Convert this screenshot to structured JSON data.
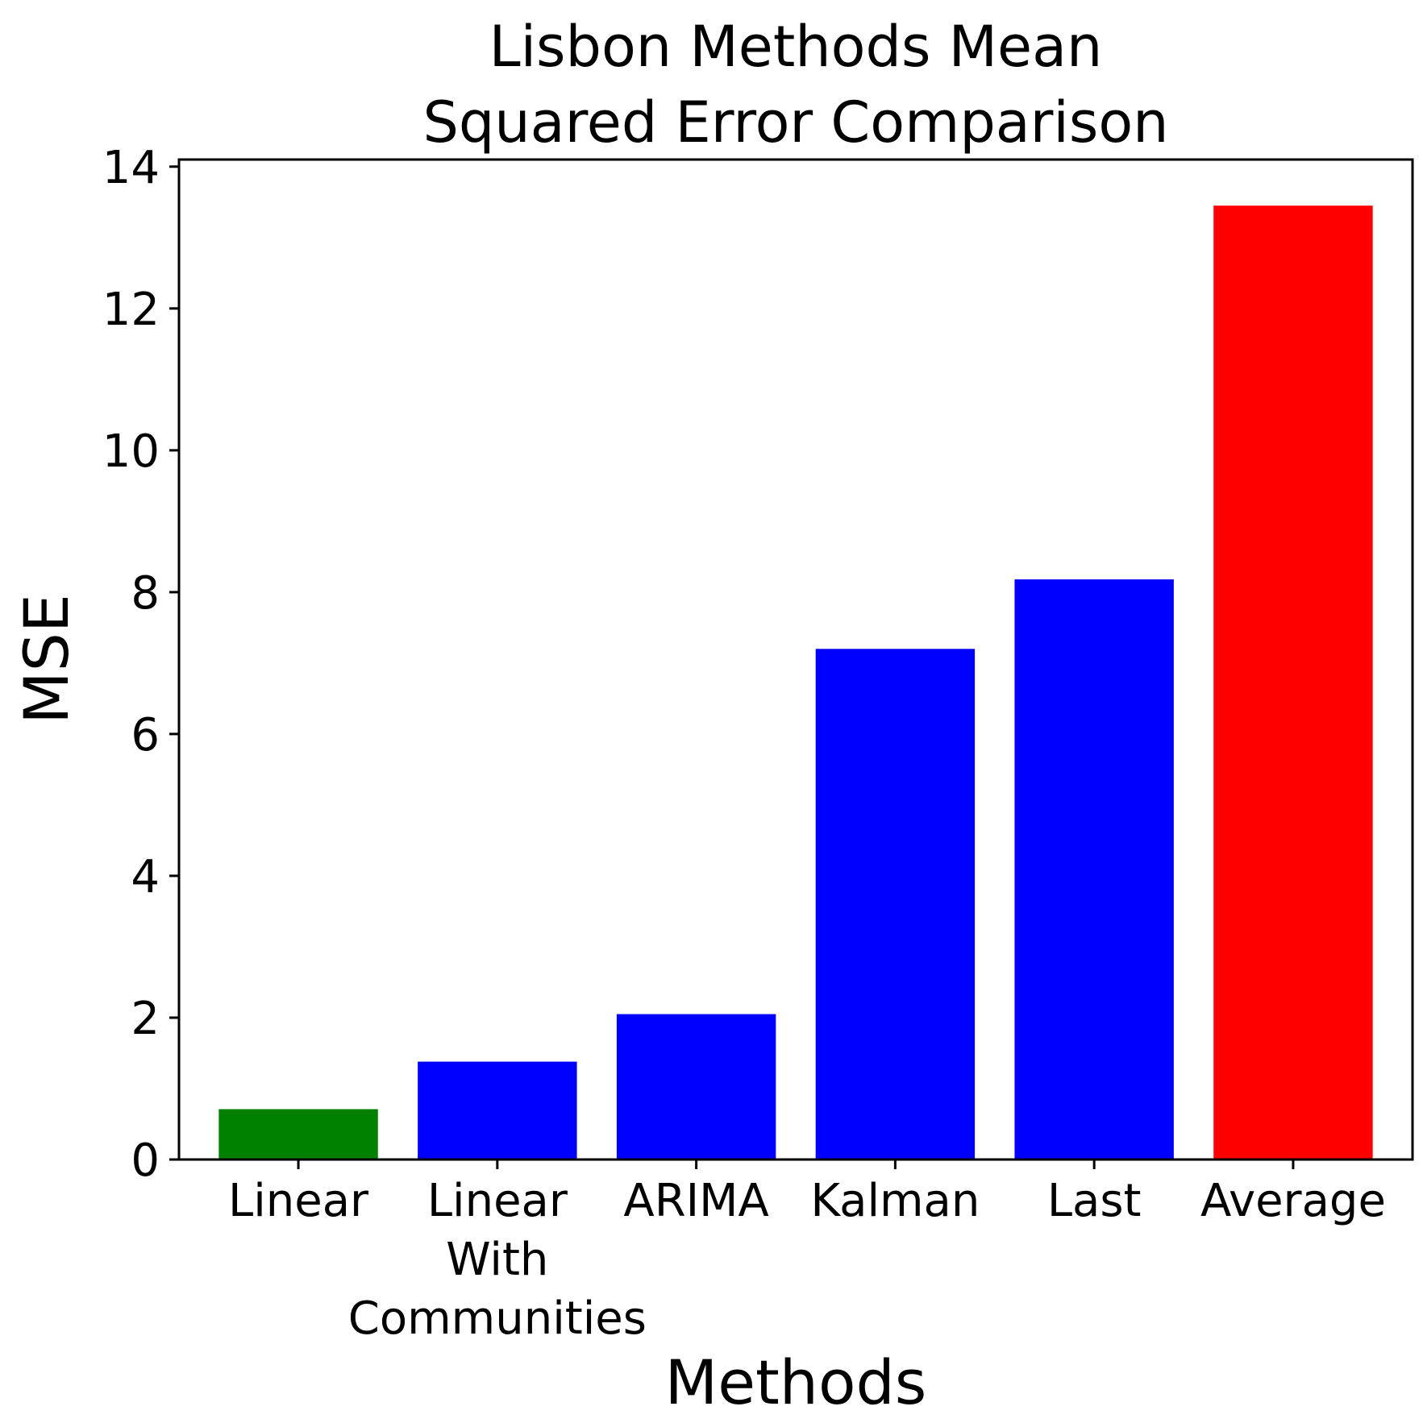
{
  "chart_data": {
    "type": "bar",
    "title_lines": [
      "Lisbon Methods Mean",
      "Squared Error Comparison"
    ],
    "xlabel": "Methods",
    "ylabel": "MSE",
    "categories": [
      {
        "label_lines": [
          "Linear"
        ]
      },
      {
        "label_lines": [
          "Linear",
          "With",
          "Communities"
        ]
      },
      {
        "label_lines": [
          "ARIMA"
        ]
      },
      {
        "label_lines": [
          "Kalman"
        ]
      },
      {
        "label_lines": [
          "Last"
        ]
      },
      {
        "label_lines": [
          "Average"
        ]
      }
    ],
    "values": [
      0.71,
      1.38,
      2.05,
      7.2,
      8.18,
      13.45
    ],
    "bar_colors": [
      "#008000",
      "#0000ff",
      "#0000ff",
      "#0000ff",
      "#0000ff",
      "#ff0000"
    ],
    "ylim": [
      0,
      14.1
    ],
    "yticks": [
      0,
      2,
      4,
      6,
      8,
      10,
      12,
      14
    ],
    "grid": false,
    "legend": null
  }
}
